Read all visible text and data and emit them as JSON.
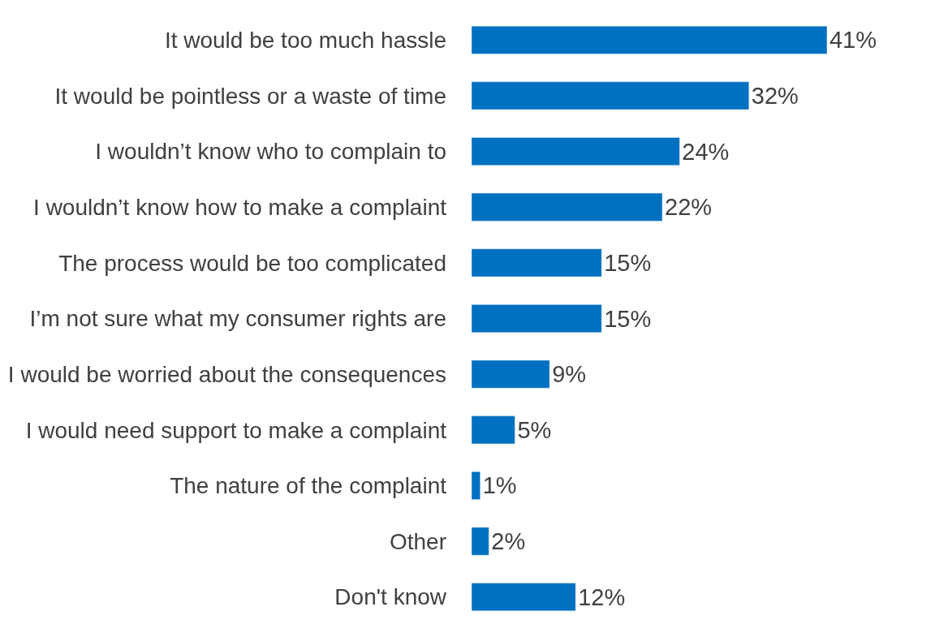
{
  "chart_data": {
    "type": "bar",
    "orientation": "horizontal",
    "categories": [
      "It would be too much hassle",
      "It would be pointless or a waste of time",
      "I wouldn’t know who to complain to",
      "I wouldn’t know how to make a complaint",
      "The process would be too complicated",
      "I’m not sure what my consumer rights are",
      "I would be worried about the consequences",
      "I would need support to make a complaint",
      "The nature of the complaint",
      "Other",
      "Don't know"
    ],
    "values": [
      41,
      32,
      24,
      22,
      15,
      15,
      9,
      5,
      1,
      2,
      12
    ],
    "value_labels": [
      "41%",
      "32%",
      "24%",
      "22%",
      "15%",
      "15%",
      "9%",
      "5%",
      "1%",
      "2%",
      "12%"
    ],
    "color": "#0070c0"
  }
}
